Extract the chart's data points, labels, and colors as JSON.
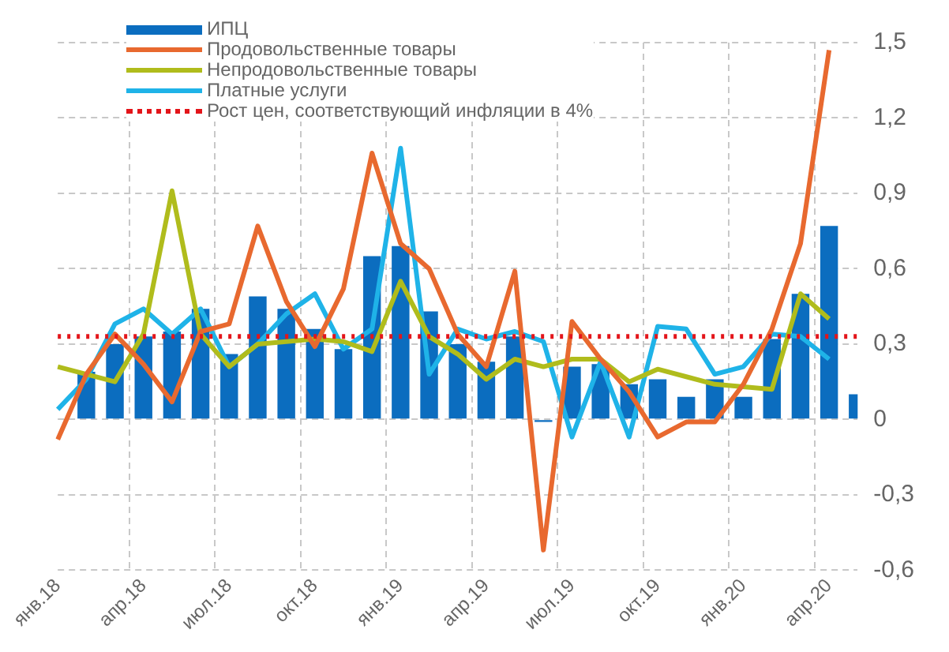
{
  "chart_data": {
    "type": "bar",
    "categories": [
      "янв.18",
      null,
      null,
      "апр.18",
      null,
      null,
      "июл.18",
      null,
      null,
      "окт.18",
      null,
      null,
      "янв.19",
      null,
      null,
      "апр.19",
      null,
      null,
      "июл.19",
      null,
      null,
      "окт.19",
      null,
      null,
      "янв.20",
      null,
      null,
      "апр.20",
      null
    ],
    "series": [
      {
        "name": "ИПЦ",
        "color": "#0b6dbf",
        "values": [
          null,
          0.19,
          0.3,
          0.33,
          0.35,
          0.44,
          0.26,
          0.49,
          0.44,
          0.36,
          0.28,
          0.65,
          0.69,
          0.43,
          0.3,
          0.23,
          0.33,
          -0.01,
          0.21,
          0.22,
          0.14,
          0.16,
          0.09,
          0.16,
          0.09,
          0.32,
          0.5,
          0.77,
          0.1
        ]
      },
      {
        "name": "Продовольственные товары",
        "type": "line",
        "color": "#e8692f",
        "values": [
          -0.08,
          0.18,
          0.34,
          0.22,
          0.07,
          0.35,
          0.38,
          0.77,
          0.47,
          0.29,
          0.52,
          1.06,
          0.7,
          0.6,
          0.34,
          0.21,
          0.59,
          -0.52,
          0.39,
          0.24,
          0.11,
          -0.07,
          -0.01,
          -0.01,
          0.14,
          0.36,
          0.7,
          1.47,
          null
        ]
      },
      {
        "name": "Непродовольственные товары",
        "type": "line",
        "color": "#b0bc1c",
        "values": [
          0.21,
          0.18,
          0.15,
          0.34,
          0.91,
          0.34,
          0.21,
          0.3,
          0.31,
          0.32,
          0.31,
          0.27,
          0.55,
          0.33,
          0.26,
          0.16,
          0.24,
          0.21,
          0.24,
          0.24,
          0.15,
          0.2,
          0.17,
          0.14,
          0.13,
          0.12,
          0.5,
          0.4,
          null
        ]
      },
      {
        "name": "Платные услуги",
        "type": "line",
        "color": "#1fb3e8",
        "values": [
          0.04,
          0.16,
          0.38,
          0.44,
          0.34,
          0.44,
          0.21,
          0.3,
          0.42,
          0.5,
          0.28,
          0.36,
          1.08,
          0.18,
          0.36,
          0.32,
          0.35,
          0.31,
          -0.07,
          0.23,
          -0.07,
          0.37,
          0.36,
          0.18,
          0.21,
          0.34,
          0.33,
          0.24,
          null
        ]
      }
    ],
    "ref_lines": [
      {
        "axis": "y",
        "value": 0.33,
        "label": "Рост цен, соответствующий инфляции в 4%",
        "color": "#e3151a",
        "line_style": "dotted"
      }
    ],
    "ylim": [
      -0.6,
      1.5
    ],
    "yticks": [
      {
        "value": -0.6,
        "label": "-0,6"
      },
      {
        "value": -0.3,
        "label": "-0,3"
      },
      {
        "value": 0,
        "label": "0"
      },
      {
        "value": 0.3,
        "label": "0,3"
      },
      {
        "value": 0.6,
        "label": "0,6"
      },
      {
        "value": 0.9,
        "label": "0,9"
      },
      {
        "value": 1.2,
        "label": "1,2"
      },
      {
        "value": 1.5,
        "label": "1,5"
      }
    ],
    "grid": true,
    "legend": "top left"
  }
}
